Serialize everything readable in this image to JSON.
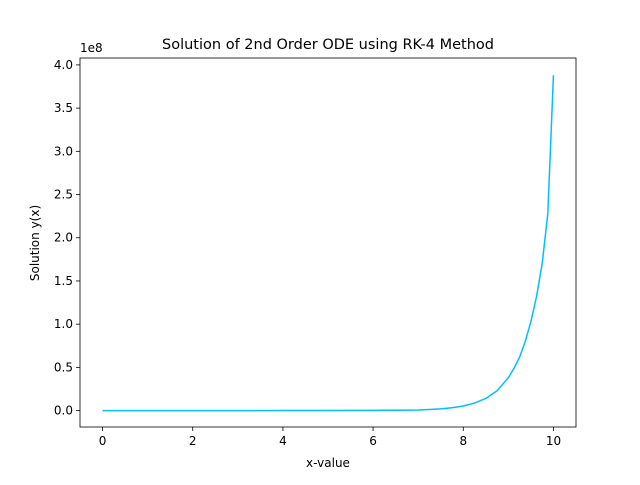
{
  "chart_data": {
    "type": "line",
    "title": "Solution of 2nd Order ODE using RK-4 Method",
    "xlabel": "x-value",
    "ylabel": "Solution y(x)",
    "y_offset_label": "1e8",
    "y_scale": 100000000,
    "xlim": [
      -0.5,
      10.5
    ],
    "ylim": [
      -0.19,
      4.08
    ],
    "x_ticks": [
      0,
      2,
      4,
      6,
      8,
      10
    ],
    "x_tick_labels": [
      "0",
      "2",
      "4",
      "6",
      "8",
      "10"
    ],
    "y_ticks": [
      0.0,
      0.5,
      1.0,
      1.5,
      2.0,
      2.5,
      3.0,
      3.5,
      4.0
    ],
    "y_tick_labels": [
      "0.0",
      "0.5",
      "1.0",
      "1.5",
      "2.0",
      "2.5",
      "3.0",
      "3.5",
      "4.0"
    ],
    "grid": false,
    "series": [
      {
        "color": "#00bfff",
        "x": [
          0,
          1,
          2,
          3,
          4,
          5,
          6,
          6.5,
          7,
          7.25,
          7.5,
          7.75,
          8,
          8.25,
          8.5,
          8.75,
          9,
          9.125,
          9.25,
          9.375,
          9.5,
          9.625,
          9.75,
          9.875,
          10
        ],
        "y": [
          0.0,
          0.0,
          0.0,
          0.0,
          0.0003,
          0.0009,
          0.0025,
          0.0043,
          0.0071,
          0.0124,
          0.02,
          0.033,
          0.053,
          0.087,
          0.14,
          0.23,
          0.38,
          0.49,
          0.62,
          0.8,
          1.03,
          1.32,
          1.7,
          2.28,
          3.88
        ]
      }
    ]
  }
}
